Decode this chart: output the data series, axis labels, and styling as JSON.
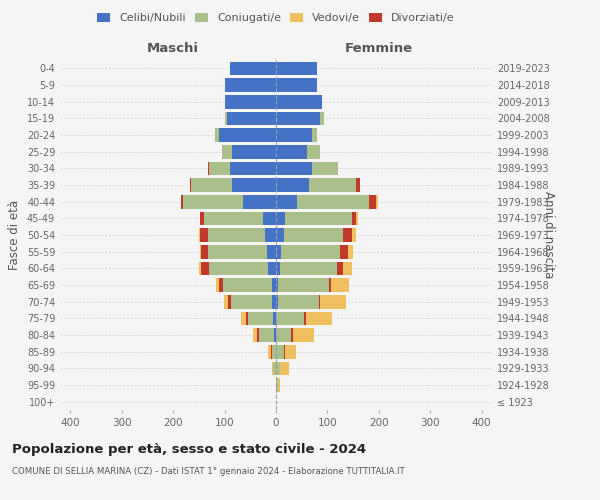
{
  "age_groups": [
    "100+",
    "95-99",
    "90-94",
    "85-89",
    "80-84",
    "75-79",
    "70-74",
    "65-69",
    "60-64",
    "55-59",
    "50-54",
    "45-49",
    "40-44",
    "35-39",
    "30-34",
    "25-29",
    "20-24",
    "15-19",
    "10-14",
    "5-9",
    "0-4"
  ],
  "birth_years": [
    "≤ 1923",
    "1924-1928",
    "1929-1933",
    "1934-1938",
    "1939-1943",
    "1944-1948",
    "1949-1953",
    "1954-1958",
    "1959-1963",
    "1964-1968",
    "1969-1973",
    "1974-1978",
    "1979-1983",
    "1984-1988",
    "1989-1993",
    "1994-1998",
    "1999-2003",
    "2004-2008",
    "2009-2013",
    "2014-2018",
    "2019-2023"
  ],
  "colors": {
    "celibi": "#4472C4",
    "coniugati": "#AABF8A",
    "vedovi": "#F0C060",
    "divorziati": "#C0392B"
  },
  "males": {
    "celibi": [
      0,
      0,
      0,
      0,
      3,
      5,
      8,
      8,
      15,
      18,
      22,
      25,
      65,
      85,
      90,
      85,
      110,
      95,
      100,
      100,
      90
    ],
    "coniugati": [
      0,
      0,
      5,
      8,
      30,
      50,
      80,
      95,
      115,
      115,
      110,
      115,
      115,
      80,
      40,
      20,
      8,
      5,
      0,
      0,
      0
    ],
    "vedovi": [
      0,
      0,
      3,
      5,
      8,
      10,
      8,
      5,
      5,
      3,
      3,
      0,
      0,
      0,
      0,
      0,
      0,
      0,
      0,
      0,
      0
    ],
    "divorziati": [
      0,
      0,
      0,
      2,
      3,
      3,
      5,
      8,
      15,
      12,
      15,
      8,
      5,
      3,
      3,
      0,
      0,
      0,
      0,
      0,
      0
    ]
  },
  "females": {
    "celibi": [
      0,
      0,
      0,
      0,
      0,
      0,
      3,
      3,
      8,
      10,
      15,
      18,
      40,
      65,
      70,
      60,
      70,
      85,
      90,
      80,
      80
    ],
    "coniugati": [
      0,
      3,
      8,
      15,
      30,
      55,
      80,
      100,
      110,
      115,
      115,
      130,
      140,
      90,
      50,
      25,
      10,
      8,
      0,
      0,
      0
    ],
    "vedovi": [
      0,
      5,
      18,
      20,
      40,
      50,
      50,
      35,
      18,
      10,
      8,
      3,
      3,
      0,
      0,
      0,
      0,
      0,
      0,
      0,
      0
    ],
    "divorziati": [
      0,
      0,
      0,
      3,
      3,
      3,
      3,
      3,
      12,
      15,
      18,
      8,
      15,
      8,
      0,
      0,
      0,
      0,
      0,
      0,
      0
    ]
  },
  "xlim": 420,
  "xticks": [
    -400,
    -300,
    -200,
    -100,
    0,
    100,
    200,
    300,
    400
  ],
  "xticklabels": [
    "400",
    "300",
    "200",
    "100",
    "0",
    "100",
    "200",
    "300",
    "400"
  ],
  "title": "Popolazione per età, sesso e stato civile - 2024",
  "subtitle": "COMUNE DI SELLIA MARINA (CZ) - Dati ISTAT 1° gennaio 2024 - Elaborazione TUTTITALIA.IT",
  "ylabel_left": "Fasce di età",
  "ylabel_right": "Anni di nascita",
  "label_maschi": "Maschi",
  "label_femmine": "Femmine",
  "legend_labels": [
    "Celibi/Nubili",
    "Coniugati/e",
    "Vedovi/e",
    "Divorziati/e"
  ],
  "bg_color": "#f5f5f5"
}
